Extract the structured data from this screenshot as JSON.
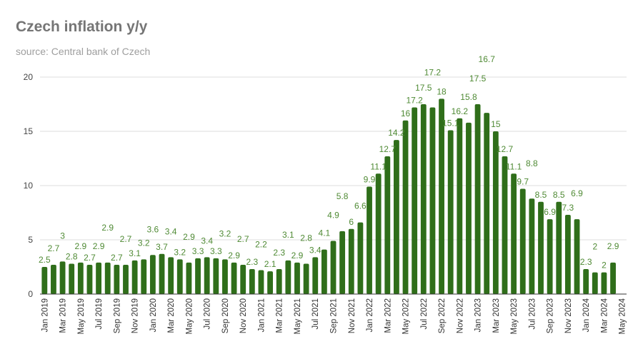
{
  "chart_data": {
    "type": "bar",
    "title": "Czech inflation y/y",
    "subtitle": "source: Central bank of Czech",
    "xlabel": "",
    "ylabel": "",
    "ylim": [
      0,
      20
    ],
    "yticks": [
      0,
      5,
      10,
      15,
      20
    ],
    "grid": true,
    "legend": "none",
    "bar_color": "#2f6e1a",
    "label_color": "#4f8a34",
    "categories": [
      "Jan 2019",
      "Feb 2019",
      "Mar 2019",
      "Apr 2019",
      "May 2019",
      "Jun 2019",
      "Jul 2019",
      "Aug 2019",
      "Sep 2019",
      "Oct 2019",
      "Nov 2019",
      "Dec 2019",
      "Jan 2020",
      "Feb 2020",
      "Mar 2020",
      "Apr 2020",
      "May 2020",
      "Jun 2020",
      "Jul 2020",
      "Aug 2020",
      "Sep 2020",
      "Oct 2020",
      "Nov 2020",
      "Dec 2020",
      "Jan 2021",
      "Feb 2021",
      "Mar 2021",
      "Apr 2021",
      "May 2021",
      "Jun 2021",
      "Jul 2021",
      "Aug 2021",
      "Sep 2021",
      "Oct 2021",
      "Nov 2021",
      "Dec 2021",
      "Jan 2022",
      "Feb 2022",
      "Mar 2022",
      "Apr 2022",
      "May 2022",
      "Jun 2022",
      "Jul 2022",
      "Aug 2022",
      "Sep 2022",
      "Oct 2022",
      "Nov 2022",
      "Dec 2022",
      "Jan 2023",
      "Feb 2023",
      "Mar 2023",
      "Apr 2023",
      "May 2023",
      "Jun 2023",
      "Jul 2023",
      "Aug 2023",
      "Sep 2023",
      "Oct 2023",
      "Nov 2023",
      "Dec 2023",
      "Jan 2024",
      "Feb 2024",
      "Mar 2024",
      "Apr 2024",
      "May 2024"
    ],
    "values": [
      2.5,
      2.7,
      3.0,
      2.8,
      2.9,
      2.7,
      2.9,
      2.9,
      2.7,
      2.7,
      3.1,
      3.2,
      3.6,
      3.7,
      3.4,
      3.2,
      2.9,
      3.3,
      3.4,
      3.3,
      3.2,
      2.9,
      2.7,
      2.3,
      2.2,
      2.1,
      2.3,
      3.1,
      2.9,
      2.8,
      3.4,
      4.1,
      4.9,
      5.8,
      6.0,
      6.6,
      9.9,
      11.1,
      12.7,
      14.2,
      16.0,
      17.2,
      17.5,
      17.2,
      18.0,
      15.1,
      16.2,
      15.8,
      17.5,
      16.7,
      15.0,
      12.7,
      11.1,
      9.7,
      8.8,
      8.5,
      6.9,
      8.5,
      7.3,
      6.9,
      2.3,
      2.0,
      2.0,
      2.9,
      null
    ]
  }
}
